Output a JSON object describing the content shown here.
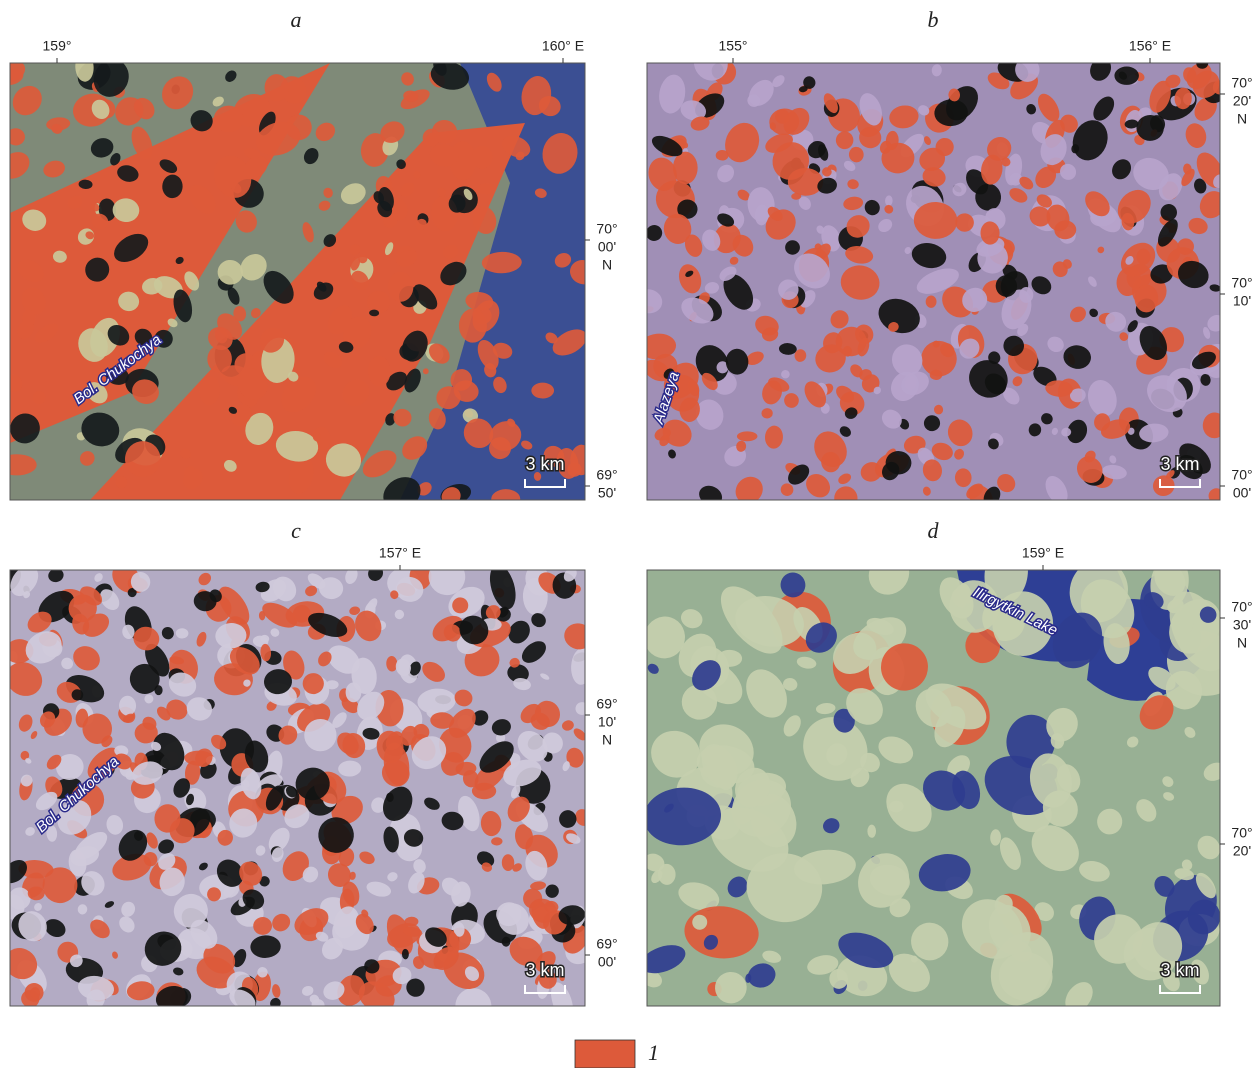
{
  "panels": [
    {
      "label": "a",
      "top_ticks": [
        "159°",
        "160° E"
      ],
      "right_ticks": [
        [
          "70°",
          "00'",
          "N"
        ],
        [
          "69°",
          "50'"
        ]
      ],
      "place_label": "Bol. Chukochya",
      "scale_bar": "3 km"
    },
    {
      "label": "b",
      "top_ticks": [
        "155°",
        "156° E"
      ],
      "right_ticks": [
        [
          "70°",
          "20'",
          "N"
        ],
        [
          "70°",
          "10'"
        ],
        [
          "70°",
          "00'"
        ]
      ],
      "place_label": "Alazeya",
      "scale_bar": "3 km"
    },
    {
      "label": "c",
      "top_ticks": [
        "157° E"
      ],
      "right_ticks": [
        [
          "69°",
          "10'",
          "N"
        ],
        [
          "69°",
          "00'"
        ]
      ],
      "place_label": "Bol. Chukochya",
      "scale_bar": "3 km"
    },
    {
      "label": "d",
      "top_ticks": [
        "159° E"
      ],
      "right_ticks": [
        [
          "70°",
          "30'",
          "N"
        ],
        [
          "70°",
          "20'"
        ]
      ],
      "place_label": "Ilirgytkin Lake",
      "scale_bar": "3 km"
    }
  ],
  "legend": {
    "label": "1"
  }
}
